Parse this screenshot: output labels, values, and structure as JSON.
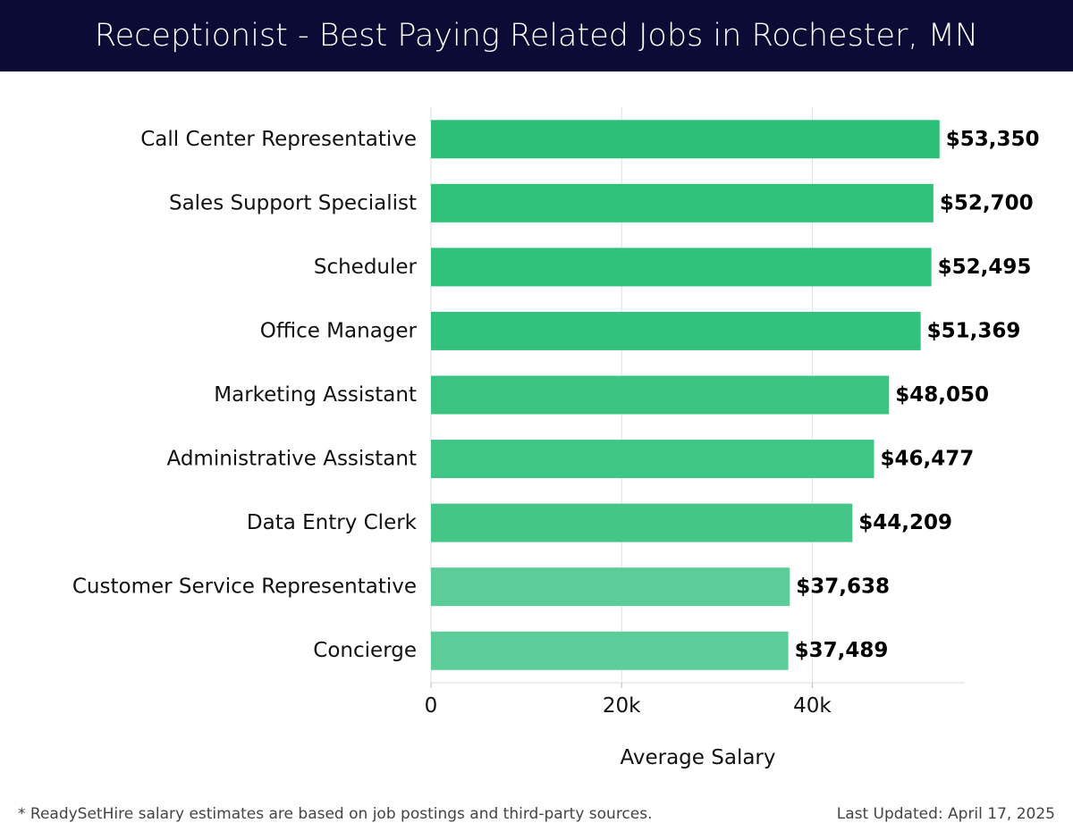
{
  "title": "Receptionist - Best Paying Related Jobs in Rochester, MN",
  "footnote": "* ReadySetHire salary estimates are based on job postings and third-party sources.",
  "last_updated": "Last Updated: April 17, 2025",
  "chart_data": {
    "type": "bar",
    "orientation": "horizontal",
    "categories": [
      "Call Center Representative",
      "Sales Support Specialist",
      "Scheduler",
      "Office Manager",
      "Marketing Assistant",
      "Administrative Assistant",
      "Data Entry Clerk",
      "Customer Service Representative",
      "Concierge"
    ],
    "values": [
      53350,
      52700,
      52495,
      51369,
      48050,
      46477,
      44209,
      37638,
      37489
    ],
    "value_labels": [
      "$53,350",
      "$52,700",
      "$52,495",
      "$51,369",
      "$48,050",
      "$46,477",
      "$44,209",
      "$37,638",
      "$37,489"
    ],
    "bar_colors": [
      "#2dbf78",
      "#2fc07a",
      "#30c17b",
      "#33c27d",
      "#3ac482",
      "#3fc585",
      "#45c689",
      "#5ccc98",
      "#5ccc98"
    ],
    "xlabel": "Average Salary",
    "ylabel": "",
    "xticks": [
      0,
      20000,
      40000
    ],
    "xtick_labels": [
      "0",
      "20k",
      "40k"
    ],
    "xlim": [
      0,
      56000
    ],
    "grid": true
  }
}
